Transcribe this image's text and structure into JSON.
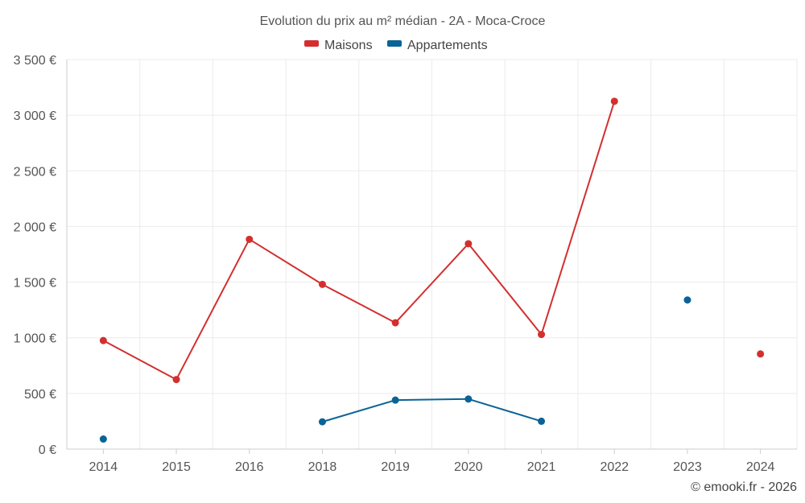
{
  "chart_data": {
    "type": "line",
    "title": "Evolution du prix au m² médian - 2A - Moca-Croce",
    "categories": [
      "2014",
      "2015",
      "2016",
      "2018",
      "2019",
      "2020",
      "2021",
      "2022",
      "2023",
      "2024"
    ],
    "series": [
      {
        "name": "Maisons",
        "color": "#d32f2f",
        "values": [
          975,
          625,
          1885,
          1480,
          1135,
          1845,
          1030,
          3125,
          null,
          855
        ]
      },
      {
        "name": "Appartements",
        "color": "#0a6396",
        "values": [
          90,
          null,
          null,
          245,
          440,
          450,
          250,
          null,
          1340,
          null
        ]
      }
    ],
    "yticks": [
      {
        "value": 0,
        "label": "0 €"
      },
      {
        "value": 500,
        "label": "500 €"
      },
      {
        "value": 1000,
        "label": "1 000 €"
      },
      {
        "value": 1500,
        "label": "1 500 €"
      },
      {
        "value": 2000,
        "label": "2 000 €"
      },
      {
        "value": 2500,
        "label": "2 500 €"
      },
      {
        "value": 3000,
        "label": "3 000 €"
      },
      {
        "value": 3500,
        "label": "3 500 €"
      }
    ],
    "ylim": [
      0,
      3500
    ],
    "xlabel": "",
    "ylabel": "",
    "grid": true,
    "legend_position": "top-center"
  },
  "credit": "© emooki.fr - 2026"
}
